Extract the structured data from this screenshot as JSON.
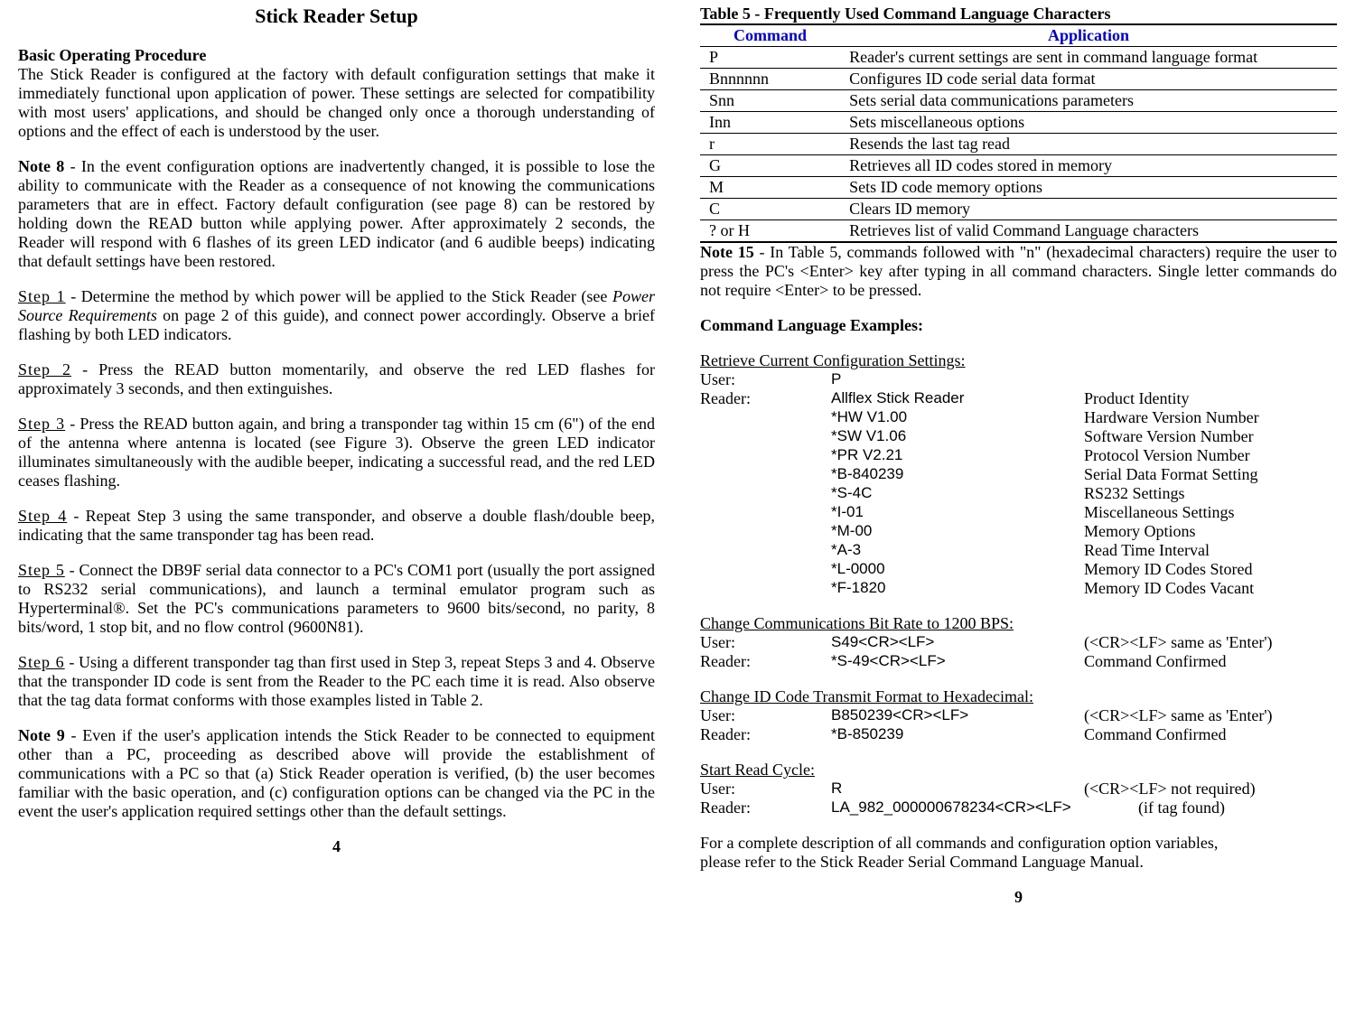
{
  "left": {
    "title": "Stick Reader Setup",
    "section_head": "Basic Operating Procedure",
    "intro": "The Stick Reader is configured at the factory with default configuration settings that make it immediately functional upon application of power.  These settings are selected for compatibility with most users' applications, and should be changed only once a thorough understanding of options and the effect of each is understood by the user.",
    "note8_label": "Note 8",
    "note8_body": "  -  In the event configuration options are inadvertently changed, it is possible to lose the ability to communicate with the Reader as a consequence of not knowing the communications parameters that are in effect.  Factory default configuration (see page 8)  can be restored by holding down the READ button while applying power.  After approximately 2 seconds, the Reader will respond with 6 flashes of its green LED indicator (and 6 audible beeps) indicating that default settings have been restored.",
    "steps": {
      "s1_label": "Step 1",
      "s1_body": "  -   Determine the method by which power will be applied to the Stick Reader (see  ",
      "s1_italic": "Power Source Requirements",
      "s1_body2": "  on page 2 of this guide), and connect power accordingly.  Observe a brief flashing by both LED indicators.",
      "s2_label": "Step 2",
      "s2_body": "  -   Press the READ button momentarily,  and observe the red LED flashes for approximately 3 seconds, and then extinguishes.",
      "s3_label": "Step 3",
      "s3_body": "  -   Press the READ button again, and bring a transponder tag within 15 cm (6\") of the end of the antenna where antenna is located (see Figure 3).   Observe the green LED indicator illuminates simultaneously with the audible beeper, indicating a successful read, and the red LED ceases flashing.",
      "s4_label": "Step 4",
      "s4_body": "   -    Repeat Step 3 using the same transponder, and observe a double flash/double beep, indicating that the same transponder tag has been read.",
      "s5_label": "Step 5",
      "s5_body": "  -   Connect the DB9F serial data connector to a PC's COM1 port (usually the port assigned to RS232 serial communications), and launch a terminal emulator program such as Hyperterminal®.   Set the PC's communications parameters to 9600 bits/second, no parity, 8 bits/word, 1 stop bit, and no flow control (9600N81).",
      "s6_label": "Step 6",
      "s6_body": "  -   Using a different transponder tag than first used in Step 3, repeat Steps 3 and 4.   Observe that the transponder ID code is sent from the Reader to the PC each time it is read.   Also observe that the tag data format conforms with those examples listed in Table 2."
    },
    "note9_label": "Note 9",
    "note9_body": "  -  Even if the user's application intends the Stick Reader to be connected to equipment other than a PC, proceeding as described above will provide the establishment of communications with a PC so that (a) Stick Reader operation is verified, (b) the user becomes familiar with the basic operation, and (c) configuration options can be changed via the PC in the event the user's application required settings other than the default settings.",
    "page_num": "4"
  },
  "right": {
    "table_caption": "Table 5  -  Frequently Used Command Language Characters",
    "table_headers": {
      "cmd": "Command",
      "app": "Application"
    },
    "table_rows": [
      {
        "cmd": "P",
        "app": "Reader's current settings are sent in command language format"
      },
      {
        "cmd": "Bnnnnnn",
        "app": "Configures ID code serial data format"
      },
      {
        "cmd": "Snn",
        "app": "Sets serial data communications parameters"
      },
      {
        "cmd": "Inn",
        "app": "Sets miscellaneous options"
      },
      {
        "cmd": "r",
        "app": "Resends the last tag read"
      },
      {
        "cmd": "G",
        "app": "Retrieves all ID codes stored in memory"
      },
      {
        "cmd": "M",
        "app": "Sets ID code memory options"
      },
      {
        "cmd": "C",
        "app": "Clears ID memory"
      },
      {
        "cmd": "? or H",
        "app": "Retrieves list of valid Command Language characters"
      }
    ],
    "note15_label": "Note 15",
    "note15_body": "   -   In Table 5, commands followed with \"n\" (hexadecimal characters) require the user to press the PC's <Enter> key after typing in all command characters.  Single letter commands do not require <Enter> to be pressed.",
    "examples_head": "Command Language Examples:",
    "ex1": {
      "title": "Retrieve Current Configuration Settings:",
      "user_role": "User:",
      "user_val": "P",
      "reader_role": "Reader:",
      "rows": [
        {
          "val": "Allflex Stick Reader",
          "desc": "Product Identity"
        },
        {
          "val": "*HW V1.00",
          "desc": "Hardware Version Number"
        },
        {
          "val": "*SW  V1.06",
          "desc": "Software Version Number"
        },
        {
          "val": "*PR V2.21",
          "desc": "Protocol Version Number"
        },
        {
          "val": "*B-840239",
          "desc": "Serial Data Format Setting"
        },
        {
          "val": "*S-4C",
          "desc": "RS232 Settings"
        },
        {
          "val": "*I-01",
          "desc": "Miscellaneous Settings"
        },
        {
          "val": "*M-00",
          "desc": "Memory Options"
        },
        {
          "val": "*A-3",
          "desc": "Read Time Interval"
        },
        {
          "val": "*L-0000",
          "desc": "Memory ID Codes Stored"
        },
        {
          "val": "*F-1820",
          "desc": "Memory ID Codes Vacant"
        }
      ]
    },
    "ex2": {
      "title": "Change Communications Bit Rate to 1200 BPS:",
      "user_role": "User:",
      "user_val": "S49<CR><LF>",
      "user_desc": "(<CR><LF> same as 'Enter')",
      "reader_role": "Reader:",
      "reader_val": "*S-49<CR><LF>",
      "reader_desc": "Command Confirmed"
    },
    "ex3": {
      "title": "Change ID Code Transmit Format to Hexadecimal:",
      "user_role": "User:",
      "user_val": "B850239<CR><LF>",
      "user_desc": "(<CR><LF> same as 'Enter')",
      "reader_role": "Reader:",
      "reader_val": "*B-850239",
      "reader_desc": "Command Confirmed"
    },
    "ex4": {
      "title": "Start Read Cycle:",
      "user_role": "User:",
      "user_val": "R",
      "user_desc": "(<CR><LF> not required)",
      "reader_role": "Reader:",
      "reader_val": "LA_982_000000678234<CR><LF>",
      "reader_desc": "(if tag found)"
    },
    "footer1": "For a complete description of all commands and configuration option variables,",
    "footer2": "please refer to the Stick Reader Serial Command Language Manual.",
    "page_num": "9"
  }
}
